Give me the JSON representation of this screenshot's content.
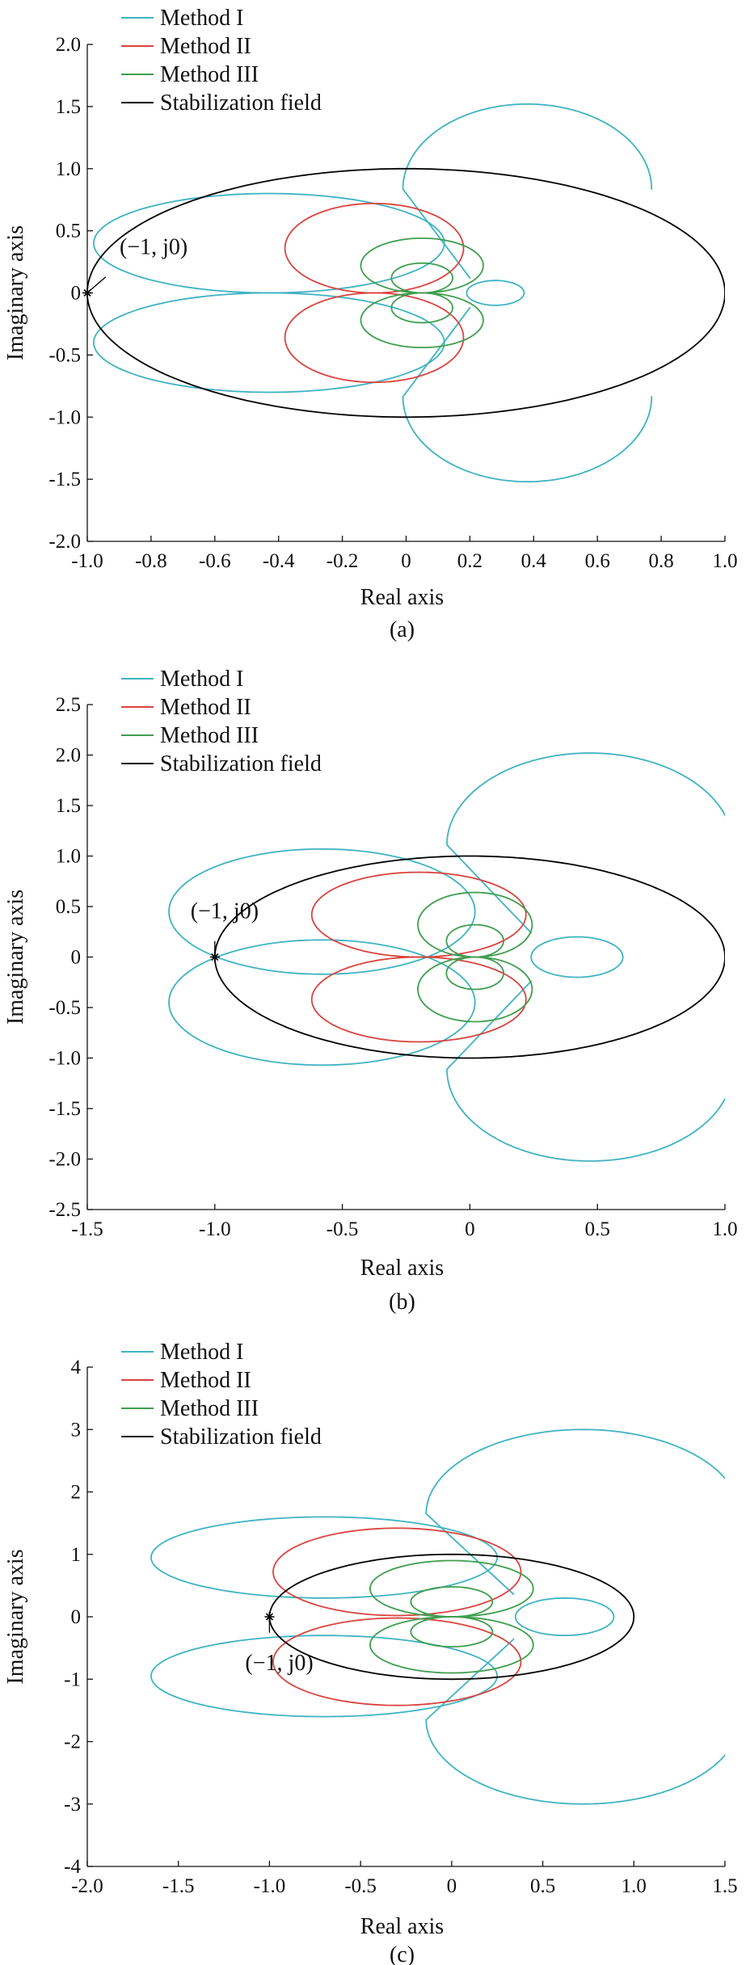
{
  "colors": {
    "method_1": "#3fb3c2",
    "method_2": "#d9443f",
    "method_3": "#3f9e4e",
    "stabilization": "#000000",
    "axis": "#111111"
  },
  "chart_data": [
    {
      "type": "line",
      "panel_label": "(a)",
      "xlabel": "Real axis",
      "ylabel": "Imaginary axis",
      "xlim": [
        -1.0,
        1.0
      ],
      "ylim": [
        -2.0,
        2.0
      ],
      "xticks": [
        "-1.0",
        "-0.8",
        "-0.6",
        "-0.4",
        "-0.2",
        "0",
        "0.2",
        "0.4",
        "0.6",
        "0.8",
        "1.0"
      ],
      "yticks": [
        "2.0",
        "1.5",
        "1.0",
        "0.5",
        "0",
        "-0.5",
        "-1.0",
        "-1.5",
        "-2.0"
      ],
      "legend_position": "top-left",
      "annotation": {
        "text": "(−1, j0)",
        "x": -1,
        "y": 0
      },
      "series": [
        {
          "name": "Method I",
          "type": "loops",
          "params": {
            "k": 1.0,
            "c": 0.0,
            "ax": 0.24,
            "ay": 0.66,
            "by": 0.6,
            "far_x": -1.0,
            "far_y": 0.66,
            "right_max": 0.68,
            "right_mid": 0.39,
            "right_y": 1.52,
            "right_top": 0.1
          }
        },
        {
          "name": "Method II",
          "type": "loops",
          "params": {
            "k": 0.45,
            "c": 0.0,
            "wall": 0.18,
            "yscale": 0.72
          }
        },
        {
          "name": "Method III",
          "type": "loops",
          "params": {
            "k": 0.2,
            "c": 0.0,
            "wall": 0.18,
            "yscale": 0.4
          }
        },
        {
          "name": "Stabilization field",
          "type": "circle",
          "center": [
            0,
            0
          ],
          "radius": 1
        }
      ]
    },
    {
      "type": "line",
      "panel_label": "(b)",
      "xlabel": "Real axis",
      "ylabel": "Imaginary axis",
      "xlim": [
        -1.5,
        1.0
      ],
      "ylim": [
        -2.5,
        2.5
      ],
      "xticks": [
        "-1.5",
        "-1.0",
        "-0.5",
        "0",
        "0.5",
        "1.0"
      ],
      "yticks": [
        "2.5",
        "2.0",
        "1.5",
        "1.0",
        "0.5",
        "0",
        "-0.5",
        "-1.0",
        "-1.5",
        "-2.0",
        "-2.5"
      ],
      "legend_position": "top-left",
      "annotation": {
        "text": "(−1, j0)",
        "x": -1,
        "y": 0
      },
      "series": [
        {
          "name": "Method I",
          "type": "loops",
          "params": {
            "k": 1.0,
            "c": 0.0
          }
        },
        {
          "name": "Method II",
          "type": "loops",
          "params": {
            "k": 0.45,
            "c": 0.0
          }
        },
        {
          "name": "Method III",
          "type": "loops",
          "params": {
            "k": 0.2,
            "c": 0.0
          }
        },
        {
          "name": "Stabilization field",
          "type": "circle",
          "center": [
            0,
            0
          ],
          "radius": 1
        }
      ]
    },
    {
      "type": "line",
      "panel_label": "(c)",
      "xlabel": "Real axis",
      "ylabel": "Imaginary axis",
      "xlim": [
        -2.0,
        1.5
      ],
      "ylim": [
        -4,
        4
      ],
      "xticks": [
        "-2.0",
        "-1.5",
        "-1.0",
        "-0.5",
        "0",
        "0.5",
        "1.0",
        "1.5"
      ],
      "yticks": [
        "4",
        "3",
        "2",
        "1",
        "0",
        "-1",
        "-2",
        "-3",
        "-4"
      ],
      "legend_position": "top-left",
      "annotation": {
        "text": "(−1, j0)",
        "x": -1,
        "y": 0
      },
      "series": [
        {
          "name": "Method I",
          "type": "loops",
          "params": {
            "k": 1.0,
            "c": 0.0
          }
        },
        {
          "name": "Method II",
          "type": "loops",
          "params": {
            "k": 0.45,
            "c": 0.0
          }
        },
        {
          "name": "Method III",
          "type": "loops",
          "params": {
            "k": 0.2,
            "c": 0.0
          }
        },
        {
          "name": "Stabilization field",
          "type": "circle",
          "center": [
            0,
            0
          ],
          "radius": 1
        }
      ]
    }
  ]
}
